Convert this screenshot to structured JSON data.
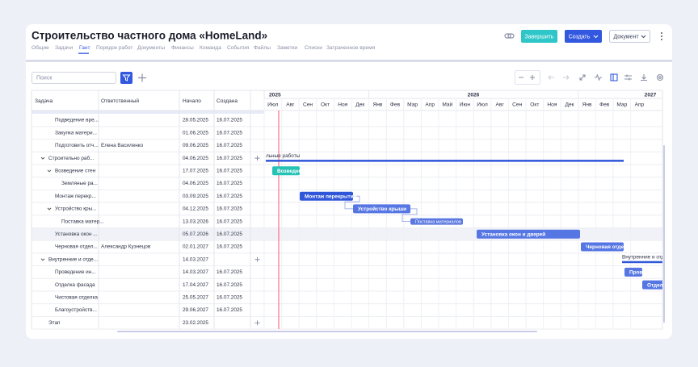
{
  "header": {
    "title": "Строительство частного дома «HomeLand»",
    "tabs": [
      "Общие",
      "Задачи",
      "Гант",
      "Порядок работ",
      "Документы",
      "Финансы",
      "Команда",
      "События",
      "Файлы",
      "Заметки",
      "Списки",
      "Затраченное время"
    ],
    "buttons": [
      "Завершить",
      "Создать",
      "Документ"
    ]
  },
  "toolbar": {
    "search_placeholder": "Поиск"
  },
  "table": {
    "columns": [
      "Задача",
      "Ответственный",
      "Начало",
      "Создана"
    ],
    "rows": [
      [
        "Подведение вре...",
        "",
        "28.05.2025",
        "16.07.2025"
      ],
      [
        "Закупка матери...",
        "",
        "01.06.2025",
        "16.07.2025"
      ],
      [
        "Подготовить отч...",
        "Елена Василенко",
        "09.06.2025",
        "16.07.2025"
      ],
      [
        "Строительно раб...",
        "",
        "04.06.2025",
        "16.07.2025"
      ],
      [
        "Возведение стен",
        "",
        "17.07.2025",
        "16.07.2025"
      ],
      [
        "Земляные ра...",
        "",
        "04.06.2025",
        "16.07.2025"
      ],
      [
        "Монтаж перекр...",
        "",
        "03.09.2025",
        "16.07.2025"
      ],
      [
        "Устройство кры...",
        "",
        "04.12.2025",
        "16.07.2025"
      ],
      [
        "Поставка матер...",
        "",
        "13.03.2026",
        "16.07.2025"
      ],
      [
        "Установка окон ...",
        "",
        "05.07.2026",
        "16.07.2025"
      ],
      [
        "Черновая отдел...",
        "Александр Кузнецов",
        "02.01.2027",
        "16.07.2025"
      ],
      [
        "Внутренние и отде...",
        "",
        "14.03.2027",
        ""
      ],
      [
        "Проведение ин...",
        "",
        "14.03.2027",
        "16.07.2025"
      ],
      [
        "Отделка фасада",
        "",
        "17.04.2027",
        "16.07.2025"
      ],
      [
        "Чистовая отделка",
        "",
        "25.05.2027",
        "16.07.2025"
      ],
      [
        "Благоустройств...",
        "",
        "29.06.2027",
        "16.07.2025"
      ],
      [
        "Этап",
        "",
        "23.02.2025",
        ""
      ]
    ]
  },
  "timeline": {
    "years": [
      "2025",
      "2026",
      "2027"
    ],
    "months": [
      "Июл",
      "Авг",
      "Сен",
      "Окт",
      "Ноя",
      "Дек",
      "Янв",
      "Фев",
      "Мар",
      "Апр",
      "Май",
      "Июн",
      "Июл",
      "Авг",
      "Сен",
      "Окт",
      "Ноя",
      "Дек",
      "Янв",
      "Фев",
      "Мар",
      "Апр"
    ]
  },
  "gantt": {
    "bars": [
      "льные работы",
      "Возведен",
      "Монтаж перекрытий",
      "Устройство крыши",
      "Поставка материалов",
      "Установка окон и дверей",
      "Черновая отдел",
      "Внутренние и отд",
      "Прове",
      "Отдел"
    ]
  }
}
